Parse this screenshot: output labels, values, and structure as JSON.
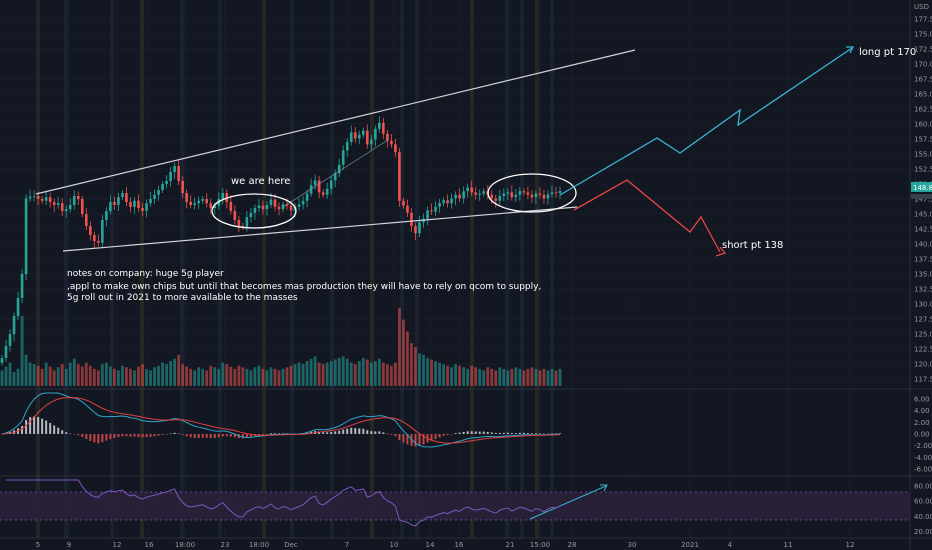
{
  "chart_data": [
    {
      "type": "candlestick",
      "currency_label": "USD",
      "price_axis_ticks": [
        "177.50",
        "175.00",
        "172.50",
        "170.00",
        "167.50",
        "165.00",
        "162.50",
        "160.00",
        "157.50",
        "155.00",
        "152.50",
        "150.00",
        "147.50",
        "145.00",
        "142.50",
        "140.00",
        "137.50",
        "135.00",
        "132.50",
        "130.00",
        "127.50",
        "125.00",
        "122.50",
        "120.00",
        "117.50"
      ],
      "last_price": "148.84",
      "x_ticks": [
        "5",
        "9",
        "12",
        "16",
        "18:00",
        "23",
        "18:00",
        "Dec",
        "7",
        "10",
        "14",
        "16",
        "21",
        "15:00",
        "28",
        "30",
        "2021",
        "4",
        "11",
        "12"
      ],
      "ylim": [
        116.5,
        179
      ],
      "close_series": [
        121,
        123,
        125,
        128,
        131,
        135,
        147.6,
        147.9,
        148,
        147.5,
        147.2,
        147.8,
        147,
        146.5,
        146.8,
        145.5,
        145.8,
        146.5,
        148,
        147.5,
        145,
        143,
        141.5,
        140.5,
        140.2,
        144,
        145.5,
        147,
        146.5,
        147.8,
        148.5,
        147,
        146.2,
        147.2,
        146,
        145.5,
        146.8,
        147.5,
        148.2,
        149,
        150,
        150.5,
        152,
        153,
        150.5,
        148.5,
        147,
        146.5,
        146.8,
        147.2,
        147.5,
        146.8,
        146,
        146.4,
        147.5,
        148.5,
        147,
        145.5,
        144,
        143,
        142.8,
        144.5,
        145.2,
        146,
        146.4,
        145.8,
        146.5,
        147.4,
        146.2,
        145.8,
        146.6,
        146.4,
        145.6,
        146.2,
        146.6,
        147.2,
        148.4,
        149.8,
        150.6,
        148.6,
        148.2,
        149.2,
        150.6,
        151.8,
        153.2,
        155.6,
        157,
        158.6,
        157.6,
        158.2,
        158.9,
        156.6,
        157.4,
        159.2,
        160.2,
        158.4,
        157.2,
        156.6,
        155.3,
        147.2,
        146.4,
        145.2,
        143,
        141.8,
        143.6,
        144.2,
        145.6,
        145.4,
        146.2,
        146.8,
        147.3,
        146.8,
        147.6,
        148.2,
        147.6,
        148.8,
        149.4,
        148.6,
        148.2,
        148.4,
        148.8,
        148.2,
        147.6,
        147.2,
        148,
        148.4,
        148.6,
        147.8,
        148.2,
        148.8,
        148.6,
        148.2,
        147.8,
        148.4,
        148.2,
        147.6,
        148.3,
        148.6,
        148.5,
        148.84
      ]
    },
    {
      "type": "bar",
      "name": "volume",
      "values": [
        0.2,
        0.25,
        0.3,
        0.18,
        0.22,
        0.9,
        0.4,
        0.3,
        0.28,
        0.26,
        0.22,
        0.3,
        0.25,
        0.2,
        0.24,
        0.28,
        0.22,
        0.3,
        0.35,
        0.28,
        0.25,
        0.3,
        0.26,
        0.22,
        0.2,
        0.28,
        0.3,
        0.25,
        0.22,
        0.2,
        0.26,
        0.24,
        0.22,
        0.2,
        0.25,
        0.28,
        0.22,
        0.2,
        0.24,
        0.26,
        0.3,
        0.28,
        0.32,
        0.35,
        0.4,
        0.28,
        0.25,
        0.22,
        0.2,
        0.24,
        0.22,
        0.2,
        0.26,
        0.24,
        0.22,
        0.3,
        0.28,
        0.25,
        0.22,
        0.26,
        0.24,
        0.22,
        0.2,
        0.24,
        0.26,
        0.22,
        0.2,
        0.24,
        0.22,
        0.2,
        0.22,
        0.24,
        0.26,
        0.28,
        0.3,
        0.28,
        0.32,
        0.35,
        0.38,
        0.3,
        0.28,
        0.3,
        0.32,
        0.34,
        0.36,
        0.38,
        0.35,
        0.3,
        0.28,
        0.32,
        0.36,
        0.34,
        0.3,
        0.32,
        0.35,
        0.3,
        0.28,
        0.26,
        0.3,
        1.0,
        0.85,
        0.7,
        0.55,
        0.5,
        0.42,
        0.4,
        0.36,
        0.34,
        0.32,
        0.3,
        0.28,
        0.26,
        0.24,
        0.28,
        0.26,
        0.24,
        0.22,
        0.26,
        0.24,
        0.22,
        0.2,
        0.24,
        0.22,
        0.2,
        0.24,
        0.22,
        0.2,
        0.22,
        0.24,
        0.22,
        0.2,
        0.22,
        0.24,
        0.22,
        0.2,
        0.22,
        0.2,
        0.22,
        0.2,
        0.22
      ]
    },
    {
      "type": "line",
      "name": "MACD",
      "y_ticks": [
        "6.00",
        "4.00",
        "2.00",
        "0.00",
        "-2.00",
        "-4.00",
        "-6.00"
      ],
      "ylim": [
        -6.5,
        7
      ]
    },
    {
      "type": "line",
      "name": "RSI",
      "y_ticks": [
        "80.00",
        "60.00",
        "40.00",
        "20.00"
      ],
      "ylim": [
        14,
        88
      ],
      "bands": [
        30,
        70
      ]
    }
  ],
  "annotations": {
    "we_are_here": "we are here",
    "long_target": "long pt 170",
    "short_target": "short pt 138",
    "notes_line1": "notes on company: huge 5g player",
    "notes_line2": ",appl to make own chips but until that becomes mas production they will have to rely on qcom to supply,",
    "notes_line3": "5g roll out in 2021 to more available to the masses"
  },
  "colors": {
    "background": "#131722",
    "grid": "#1f2332",
    "up": "#26a69a",
    "down": "#ef5350",
    "long_line": "#3ab4d4",
    "short_line": "#e84545",
    "trendline": "#d1d4dc",
    "macd": "#2ca6c9",
    "signal": "#e04040",
    "rsi": "#7e57c2",
    "rsi_band": "#2a2139"
  }
}
